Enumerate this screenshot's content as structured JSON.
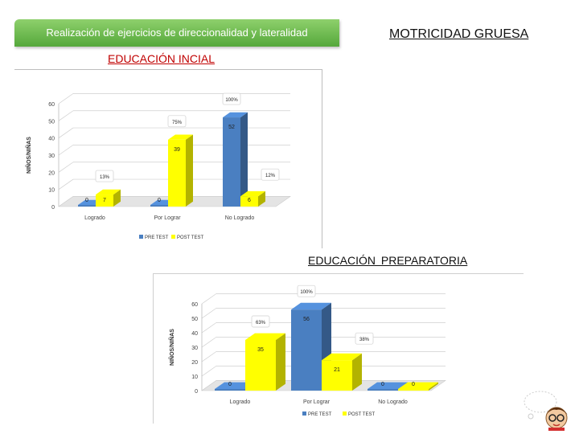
{
  "banner": "Realización de ejercicios de direccionalidad y lateralidad",
  "title": "MOTRICIDAD GRUESA",
  "sections": {
    "inicial": "EDUCACIÓN INCIAL",
    "preparatoria": "EDUCACIÓN PREPARATORIA"
  },
  "colors": {
    "pre": "#4a7fc1",
    "post": "#ffff00",
    "floor": "#e4e4e4"
  },
  "chart_data": [
    {
      "type": "bar",
      "title": "",
      "ylabel": "NIÑOS/NIÑAS",
      "xlabel": "",
      "categories": [
        "Logrado",
        "Por Lograr",
        "No Logrado"
      ],
      "yticks": [
        "0",
        "10",
        "20",
        "30",
        "40",
        "50",
        "60"
      ],
      "ylim": [
        0,
        60
      ],
      "legend_position": "bottom",
      "series": [
        {
          "name": "PRE TEST",
          "values": [
            0,
            0,
            52
          ],
          "labels": [
            "0",
            "0",
            "52"
          ]
        },
        {
          "name": "POST TEST",
          "values": [
            7,
            39,
            6
          ],
          "labels": [
            "7",
            "39",
            "6"
          ]
        }
      ],
      "annotations": [
        {
          "category": "Logrado",
          "text": "13%"
        },
        {
          "category": "Por Lograr",
          "text": "75%"
        },
        {
          "category": "No Logrado",
          "text": "100%"
        },
        {
          "category": "No Logrado",
          "text": "12%"
        }
      ]
    },
    {
      "type": "bar",
      "title": "",
      "ylabel": "NIÑOS/NIÑAS",
      "xlabel": "",
      "categories": [
        "Logrado",
        "Por Lograr",
        "No Logrado"
      ],
      "yticks": [
        "0",
        "10",
        "20",
        "30",
        "40",
        "50",
        "60"
      ],
      "ylim": [
        0,
        60
      ],
      "legend_position": "bottom",
      "series": [
        {
          "name": "PRE TEST",
          "values": [
            0,
            56,
            0
          ],
          "labels": [
            "0",
            "56",
            "0"
          ]
        },
        {
          "name": "POST TEST",
          "values": [
            35,
            21,
            0
          ],
          "labels": [
            "35",
            "21",
            "0"
          ]
        }
      ],
      "annotations": [
        {
          "category": "Logrado",
          "text": "63%"
        },
        {
          "category": "Por Lograr",
          "text": "100%"
        },
        {
          "category": "Por Lograr",
          "text": "38%"
        }
      ]
    }
  ]
}
